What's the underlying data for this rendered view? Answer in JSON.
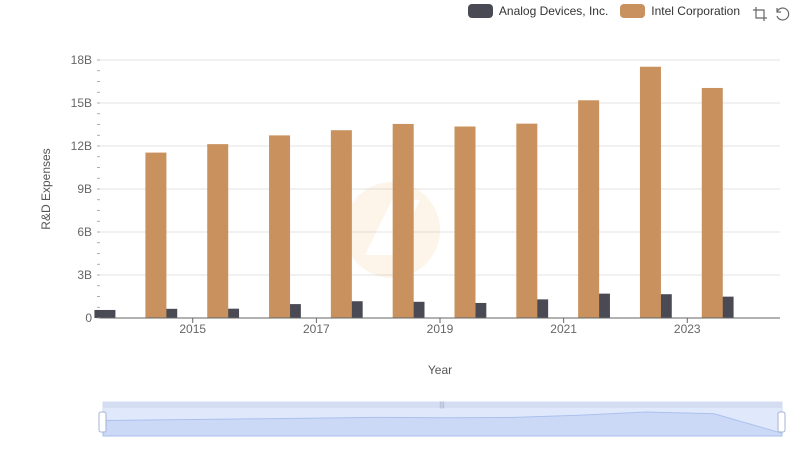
{
  "chart_data": {
    "type": "bar",
    "title": "",
    "xlabel": "Year",
    "ylabel": "R&D Expenses",
    "categories": [
      "2014",
      "2015",
      "2016",
      "2017",
      "2018",
      "2019",
      "2020",
      "2021",
      "2022",
      "2023",
      "2024"
    ],
    "x_tick_labels": [
      "2015",
      "2017",
      "2019",
      "2021",
      "2023"
    ],
    "y_ticks": [
      0,
      3,
      6,
      9,
      12,
      15,
      18
    ],
    "y_tick_labels": [
      "0",
      "3B",
      "6B",
      "9B",
      "12B",
      "15B",
      "18B"
    ],
    "ylim": [
      0,
      18
    ],
    "value_unit": "billions",
    "grid": true,
    "legend_position": "top-right",
    "series": [
      {
        "name": "Analog Devices, Inc.",
        "color": "#4a4a55",
        "values": [
          0.56,
          0.64,
          0.65,
          0.97,
          1.17,
          1.13,
          1.05,
          1.3,
          1.7,
          1.66,
          1.49
        ]
      },
      {
        "name": "Intel Corporation",
        "color": "#c8915d",
        "values": [
          11.54,
          12.13,
          12.74,
          13.1,
          13.54,
          13.36,
          13.56,
          15.19,
          17.53,
          16.05,
          null
        ]
      }
    ]
  },
  "toolbox": {
    "zoom_icon": "zoom-icon",
    "restore_icon": "restore-icon"
  },
  "watermark": "logo-watermark"
}
